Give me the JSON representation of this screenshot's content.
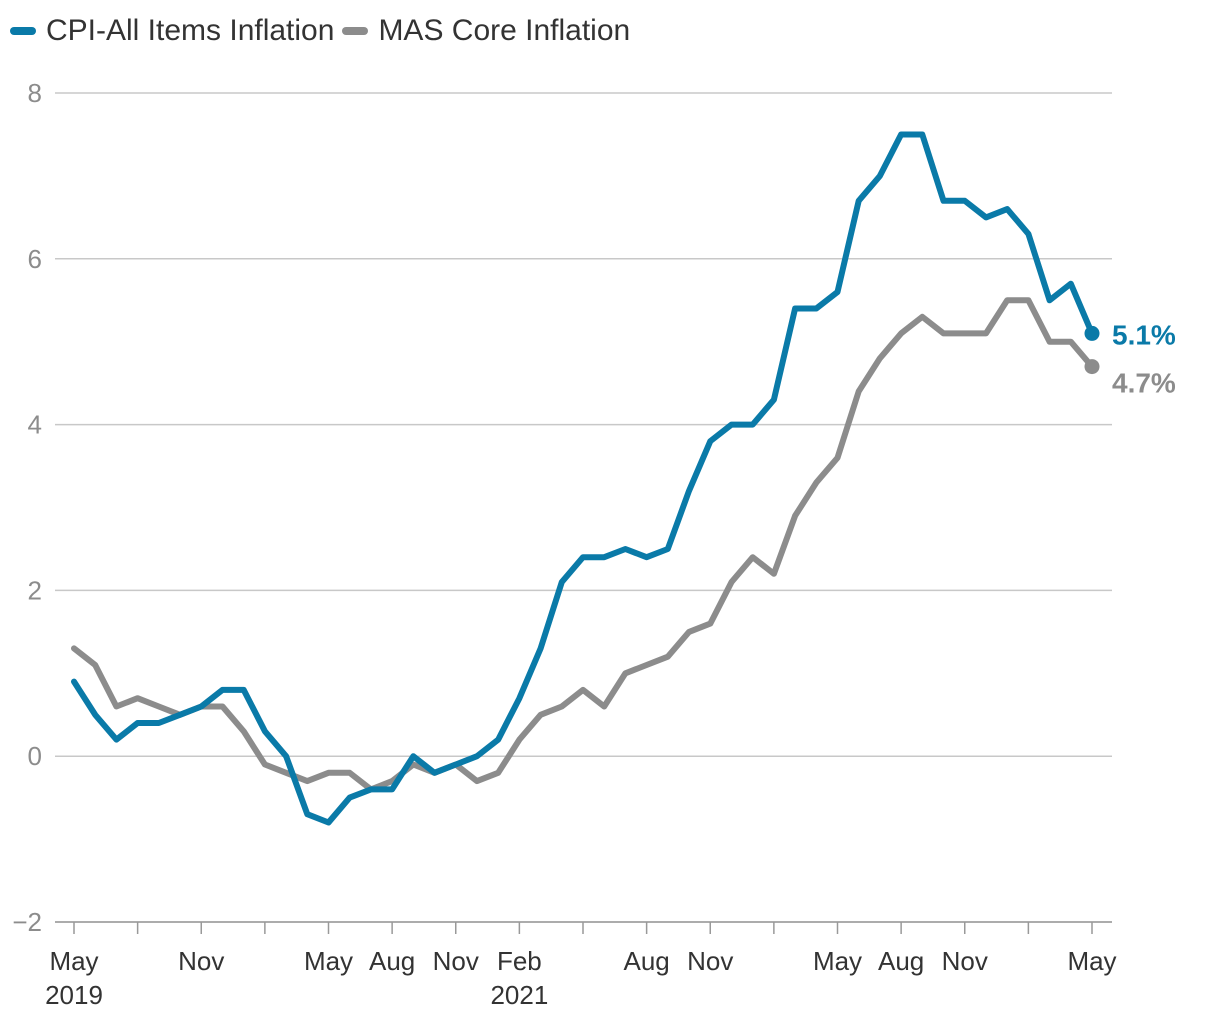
{
  "chart_data": {
    "type": "line",
    "title": "",
    "xlabel": "",
    "ylabel": "",
    "ylim": [
      -2,
      8
    ],
    "yticks": [
      -2,
      0,
      2,
      4,
      6,
      8
    ],
    "grid": true,
    "legend_placement": "top-left",
    "x": [
      "2019-05",
      "2019-06",
      "2019-07",
      "2019-08",
      "2019-09",
      "2019-10",
      "2019-11",
      "2019-12",
      "2020-01",
      "2020-02",
      "2020-03",
      "2020-04",
      "2020-05",
      "2020-06",
      "2020-07",
      "2020-08",
      "2020-09",
      "2020-10",
      "2020-11",
      "2020-12",
      "2021-01",
      "2021-02",
      "2021-03",
      "2021-04",
      "2021-05",
      "2021-06",
      "2021-07",
      "2021-08",
      "2021-09",
      "2021-10",
      "2021-11",
      "2021-12",
      "2022-01",
      "2022-02",
      "2022-03",
      "2022-04",
      "2022-05",
      "2022-06",
      "2022-07",
      "2022-08",
      "2022-09",
      "2022-10",
      "2022-11",
      "2022-12",
      "2023-01",
      "2023-02",
      "2023-03",
      "2023-04",
      "2023-05"
    ],
    "x_tick_labels": [
      {
        "x": "2019-05",
        "label": "May",
        "sublabel": "2019"
      },
      {
        "x": "2019-11",
        "label": "Nov",
        "sublabel": ""
      },
      {
        "x": "2020-05",
        "label": "May",
        "sublabel": ""
      },
      {
        "x": "2020-08",
        "label": "Aug",
        "sublabel": ""
      },
      {
        "x": "2020-11",
        "label": "Nov",
        "sublabel": ""
      },
      {
        "x": "2021-02",
        "label": "Feb",
        "sublabel": "2021"
      },
      {
        "x": "2021-08",
        "label": "Aug",
        "sublabel": ""
      },
      {
        "x": "2021-11",
        "label": "Nov",
        "sublabel": ""
      },
      {
        "x": "2022-05",
        "label": "May",
        "sublabel": ""
      },
      {
        "x": "2022-08",
        "label": "Aug",
        "sublabel": ""
      },
      {
        "x": "2022-11",
        "label": "Nov",
        "sublabel": ""
      },
      {
        "x": "2023-05",
        "label": "May",
        "sublabel": ""
      }
    ],
    "x_minor_ticks": [
      "2019-05",
      "2019-08",
      "2019-11",
      "2020-02",
      "2020-05",
      "2020-08",
      "2020-11",
      "2021-02",
      "2021-05",
      "2021-08",
      "2021-11",
      "2022-02",
      "2022-05",
      "2022-08",
      "2022-11",
      "2023-02",
      "2023-05"
    ],
    "series": [
      {
        "name": "CPI-All Items Inflation",
        "color": "#0a7aa8",
        "values": [
          0.9,
          0.5,
          0.2,
          0.4,
          0.4,
          0.5,
          0.6,
          0.8,
          0.8,
          0.3,
          0.0,
          -0.7,
          -0.8,
          -0.5,
          -0.4,
          -0.4,
          0.0,
          -0.2,
          -0.1,
          0.0,
          0.2,
          0.7,
          1.3,
          2.1,
          2.4,
          2.4,
          2.5,
          2.4,
          2.5,
          3.2,
          3.8,
          4.0,
          4.0,
          4.3,
          5.4,
          5.4,
          5.6,
          6.7,
          7.0,
          7.5,
          7.5,
          6.7,
          6.7,
          6.5,
          6.6,
          6.3,
          5.5,
          5.7,
          5.1
        ],
        "end_label": "5.1%"
      },
      {
        "name": "MAS Core Inflation",
        "color": "#8c8c8c",
        "values": [
          1.3,
          1.1,
          0.6,
          0.7,
          0.6,
          0.5,
          0.6,
          0.6,
          0.3,
          -0.1,
          -0.2,
          -0.3,
          -0.2,
          -0.2,
          -0.4,
          -0.3,
          -0.1,
          -0.2,
          -0.1,
          -0.3,
          -0.2,
          0.2,
          0.5,
          0.6,
          0.8,
          0.6,
          1.0,
          1.1,
          1.2,
          1.5,
          1.6,
          2.1,
          2.4,
          2.2,
          2.9,
          3.3,
          3.6,
          4.4,
          4.8,
          5.1,
          5.3,
          5.1,
          5.1,
          5.1,
          5.5,
          5.5,
          5.0,
          5.0,
          4.7
        ],
        "end_label": "4.7%"
      }
    ]
  }
}
